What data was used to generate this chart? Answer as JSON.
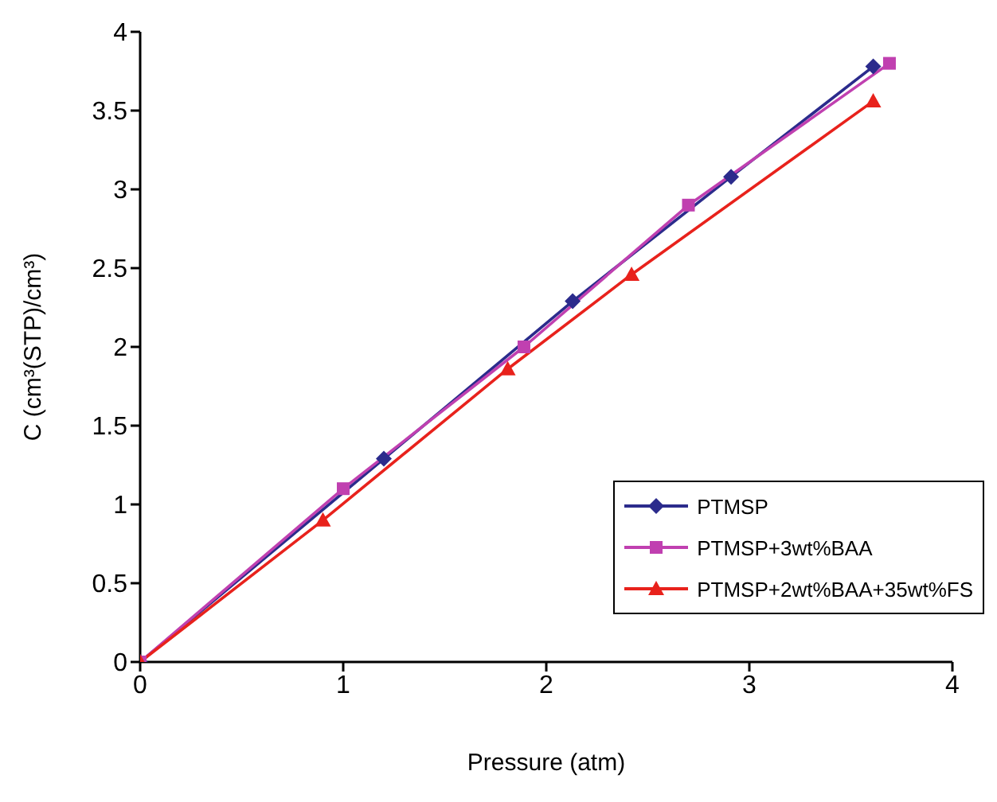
{
  "chart_data": {
    "type": "line",
    "xlabel": "Pressure (atm)",
    "ylabel": "C (cm³(STP)/cm³)",
    "xlim": [
      0,
      4
    ],
    "xticks": [
      0,
      1,
      2,
      3,
      4
    ],
    "ylim": [
      0,
      4
    ],
    "yticks": [
      0,
      0.5,
      1,
      1.5,
      2,
      2.5,
      3,
      3.5,
      4
    ],
    "grid": false,
    "legend": "bottom right",
    "line_style": "solid",
    "series": [
      {
        "name": "PTMSP",
        "color": "#2b2b8c",
        "marker": "diamond",
        "x": [
          0,
          1.2,
          2.13,
          2.91,
          3.61
        ],
        "values": [
          0,
          1.29,
          2.29,
          3.08,
          3.78
        ]
      },
      {
        "name": "PTMSP+3wt%BAA",
        "color": "#c040b0",
        "marker": "square",
        "x": [
          0,
          1.0,
          1.89,
          2.7,
          3.69
        ],
        "values": [
          0,
          1.1,
          2.0,
          2.9,
          3.8
        ]
      },
      {
        "name": "PTMSP+2wt%BAA+35wt%FS",
        "color": "#e8221c",
        "marker": "triangle",
        "x": [
          0,
          0.9,
          1.81,
          2.42,
          3.61
        ],
        "values": [
          0,
          0.9,
          1.86,
          2.46,
          3.56
        ]
      }
    ]
  }
}
